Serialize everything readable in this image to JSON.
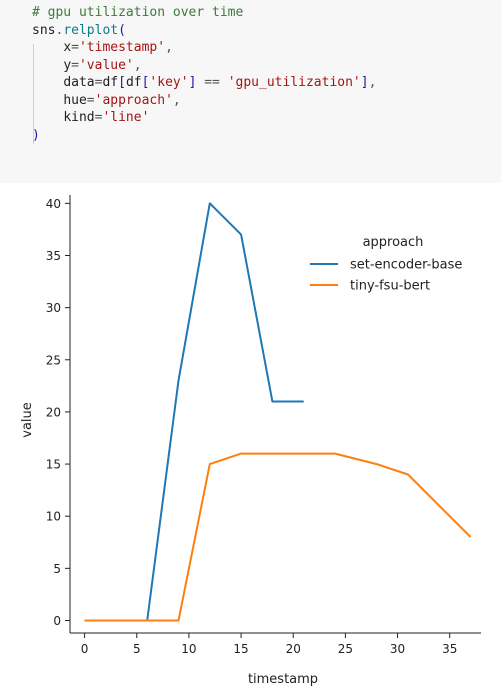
{
  "code": {
    "comment": "# gpu utilization over time",
    "call_obj": "sns",
    "call_fn": "relplot",
    "x_kw": "x",
    "x_val": "'timestamp'",
    "y_kw": "y",
    "y_val": "'value'",
    "data_kw": "data",
    "data_df": "df",
    "data_inner_df": "df",
    "data_key": "'key'",
    "data_op": "==",
    "data_val": "'gpu_utilization'",
    "hue_kw": "hue",
    "hue_val": "'approach'",
    "kind_kw": "kind",
    "kind_val": "'line'",
    "close_paren": ")"
  },
  "chart_data": {
    "type": "line",
    "xlabel": "timestamp",
    "ylabel": "value",
    "xlim": [
      -1.4,
      38
    ],
    "ylim": [
      -1.2,
      40.8
    ],
    "xticks": [
      0,
      5,
      10,
      15,
      20,
      25,
      30,
      35
    ],
    "yticks": [
      0,
      5,
      10,
      15,
      20,
      25,
      30,
      35,
      40
    ],
    "legend_title": "approach",
    "legend_position": "upper-right",
    "grid": false,
    "series": [
      {
        "name": "set-encoder-base",
        "color": "#1f77b4",
        "x": [
          0,
          6,
          9,
          12,
          15,
          18,
          21
        ],
        "y": [
          0,
          0,
          23,
          40,
          37,
          21,
          21
        ]
      },
      {
        "name": "tiny-fsu-bert",
        "color": "#ff7f0e",
        "x": [
          0,
          9,
          12,
          15,
          24,
          28,
          31,
          37
        ],
        "y": [
          0,
          0,
          15,
          16,
          16,
          15,
          14,
          8
        ]
      }
    ]
  }
}
